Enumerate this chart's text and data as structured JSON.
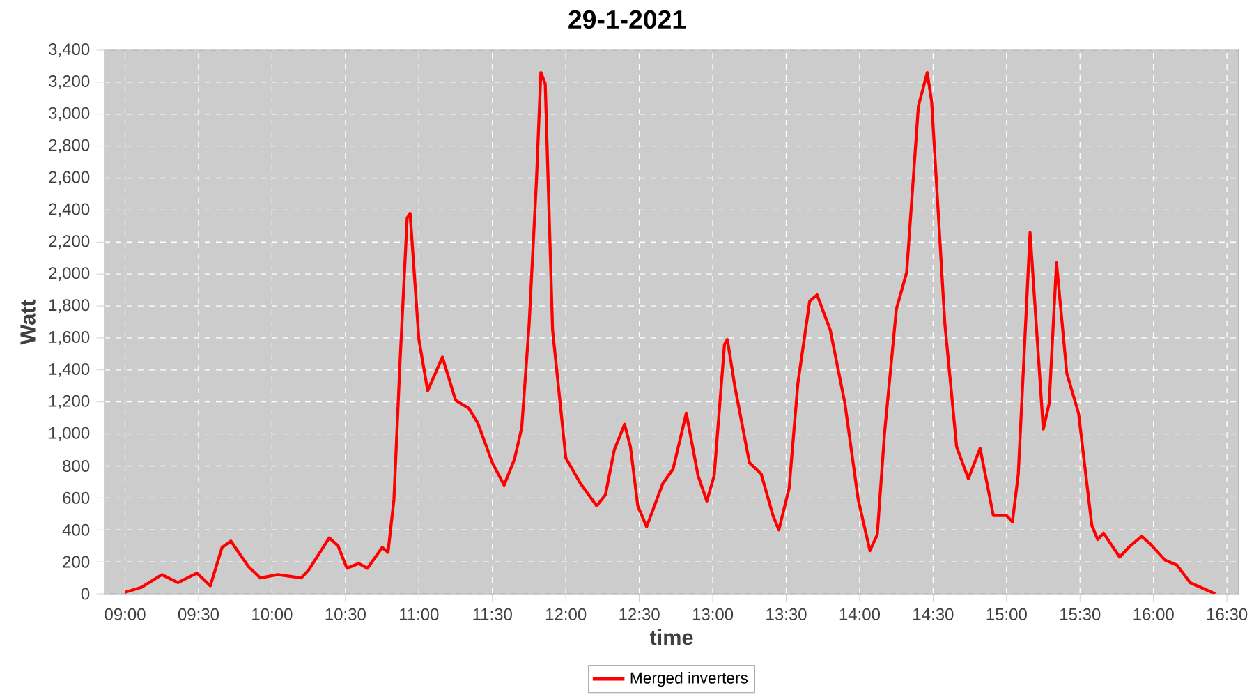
{
  "chart_data": {
    "type": "line",
    "title": "29-1-2021",
    "xlabel": "time",
    "ylabel": "Watt",
    "x": [
      9.0,
      9.11,
      9.25,
      9.36,
      9.49,
      9.58,
      9.66,
      9.72,
      9.84,
      9.92,
      10.04,
      10.2,
      10.25,
      10.39,
      10.45,
      10.51,
      10.59,
      10.65,
      10.75,
      10.79,
      10.83,
      10.87,
      10.92,
      10.94,
      11.0,
      11.06,
      11.16,
      11.25,
      11.34,
      11.4,
      11.5,
      11.58,
      11.65,
      11.7,
      11.75,
      11.8,
      11.83,
      11.86,
      11.91,
      12.0,
      12.1,
      12.21,
      12.27,
      12.33,
      12.4,
      12.44,
      12.49,
      12.55,
      12.66,
      12.73,
      12.82,
      12.9,
      12.96,
      13.01,
      13.08,
      13.1,
      13.15,
      13.25,
      13.33,
      13.41,
      13.45,
      13.52,
      13.58,
      13.66,
      13.71,
      13.8,
      13.9,
      13.99,
      14.07,
      14.12,
      14.17,
      14.25,
      14.32,
      14.4,
      14.46,
      14.49,
      14.58,
      14.66,
      14.74,
      14.82,
      14.91,
      15.0,
      15.04,
      15.08,
      15.16,
      15.25,
      15.29,
      15.34,
      15.41,
      15.49,
      15.58,
      15.62,
      15.66,
      15.77,
      15.83,
      15.92,
      15.98,
      16.08,
      16.16,
      16.25,
      16.42
    ],
    "series": [
      {
        "name": "Merged inverters",
        "color": "#ff0000",
        "values": [
          10,
          40,
          120,
          70,
          130,
          50,
          290,
          330,
          170,
          100,
          120,
          100,
          150,
          350,
          300,
          160,
          190,
          160,
          290,
          260,
          590,
          1420,
          2350,
          2380,
          1590,
          1270,
          1480,
          1210,
          1160,
          1070,
          820,
          680,
          840,
          1040,
          1680,
          2580,
          3260,
          3190,
          1650,
          850,
          690,
          550,
          620,
          900,
          1060,
          920,
          550,
          420,
          690,
          780,
          1130,
          740,
          580,
          740,
          1560,
          1590,
          1300,
          820,
          750,
          490,
          400,
          660,
          1320,
          1830,
          1870,
          1650,
          1190,
          590,
          270,
          370,
          1010,
          1780,
          2010,
          3050,
          3260,
          3080,
          1690,
          920,
          720,
          910,
          490,
          490,
          450,
          750,
          2260,
          1030,
          1190,
          2070,
          1380,
          1130,
          430,
          340,
          380,
          230,
          290,
          360,
          310,
          210,
          180,
          70,
          0
        ]
      }
    ],
    "xlim": [
      8.86,
      16.58
    ],
    "ylim": [
      0,
      3400
    ],
    "xticks": [
      {
        "value": 9,
        "label": "09:00"
      },
      {
        "value": 9.5,
        "label": "09:30"
      },
      {
        "value": 10,
        "label": "10:00"
      },
      {
        "value": 10.5,
        "label": "10:30"
      },
      {
        "value": 11,
        "label": "11:00"
      },
      {
        "value": 11.5,
        "label": "11:30"
      },
      {
        "value": 12,
        "label": "12:00"
      },
      {
        "value": 12.5,
        "label": "12:30"
      },
      {
        "value": 13,
        "label": "13:00"
      },
      {
        "value": 13.5,
        "label": "13:30"
      },
      {
        "value": 14,
        "label": "14:00"
      },
      {
        "value": 14.5,
        "label": "14:30"
      },
      {
        "value": 15,
        "label": "15:00"
      },
      {
        "value": 15.5,
        "label": "15:30"
      },
      {
        "value": 16,
        "label": "16:00"
      },
      {
        "value": 16.5,
        "label": "16:30"
      }
    ],
    "yticks": [
      0,
      200,
      400,
      600,
      800,
      {
        "value": 1000,
        "label": "1,000"
      },
      {
        "value": 1200,
        "label": "1,200"
      },
      {
        "value": 1400,
        "label": "1,400"
      },
      {
        "value": 1600,
        "label": "1,600"
      },
      {
        "value": 1800,
        "label": "1,800"
      },
      {
        "value": 2000,
        "label": "2,000"
      },
      {
        "value": 2200,
        "label": "2,200"
      },
      {
        "value": 2400,
        "label": "2,400"
      },
      {
        "value": 2600,
        "label": "2,600"
      },
      {
        "value": 2800,
        "label": "2,800"
      },
      {
        "value": 3000,
        "label": "3,000"
      },
      {
        "value": 3200,
        "label": "3,200"
      },
      {
        "value": 3400,
        "label": "3,400"
      }
    ],
    "grid": true,
    "legend": "bottom"
  }
}
